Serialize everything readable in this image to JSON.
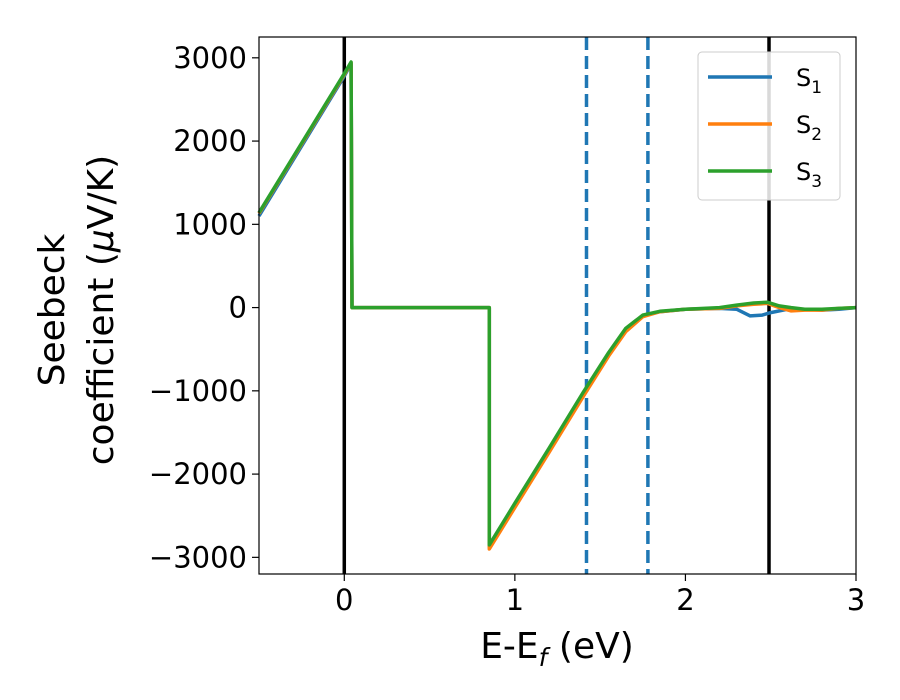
{
  "chart_data": {
    "type": "line",
    "xlabel": "E-E",
    "xlabel_sub": "f",
    "xlabel_unit": " (eV)",
    "ylabel_line1": "Seebeck",
    "ylabel_line2": "coefficient  (",
    "ylabel_mu": "μ",
    "ylabel_line2_end": "V/K)",
    "xlim": [
      -0.5,
      3
    ],
    "ylim": [
      -3200,
      3250
    ],
    "x_ticks": [
      0,
      1,
      2,
      3
    ],
    "x_tick_labels": [
      "0",
      "1",
      "2",
      "3"
    ],
    "y_ticks": [
      -3000,
      -2000,
      -1000,
      0,
      1000,
      2000,
      3000
    ],
    "y_tick_labels": [
      "−3000",
      "−2000",
      "−1000",
      "0",
      "1000",
      "2000",
      "3000"
    ],
    "grid": false,
    "legend_position": "top-right",
    "vertical_lines": [
      {
        "x": 0.0,
        "style": "solid",
        "color": "#000000"
      },
      {
        "x": 2.49,
        "style": "solid",
        "color": "#000000"
      },
      {
        "x": 1.42,
        "style": "dashed",
        "color": "#1f77b4"
      },
      {
        "x": 1.78,
        "style": "dashed",
        "color": "#1f77b4"
      }
    ],
    "series": [
      {
        "name": "S",
        "sub": "1",
        "color": "#1f77b4",
        "points": [
          [
            -0.5,
            1100
          ],
          [
            0.0,
            2780
          ],
          [
            0.04,
            2930
          ],
          [
            0.045,
            0
          ],
          [
            0.85,
            0
          ],
          [
            0.85,
            -2870
          ],
          [
            1.0,
            -2380
          ],
          [
            1.2,
            -1720
          ],
          [
            1.4,
            -1050
          ],
          [
            1.55,
            -560
          ],
          [
            1.65,
            -270
          ],
          [
            1.75,
            -100
          ],
          [
            1.85,
            -50
          ],
          [
            2.0,
            -20
          ],
          [
            2.2,
            -10
          ],
          [
            2.3,
            -20
          ],
          [
            2.38,
            -100
          ],
          [
            2.45,
            -90
          ],
          [
            2.5,
            -60
          ],
          [
            2.6,
            -20
          ],
          [
            2.7,
            -20
          ],
          [
            2.8,
            -30
          ],
          [
            2.9,
            -20
          ],
          [
            3.0,
            0
          ]
        ]
      },
      {
        "name": "S",
        "sub": "2",
        "color": "#ff7f0e",
        "points": [
          [
            -0.5,
            1130
          ],
          [
            0.0,
            2800
          ],
          [
            0.04,
            2940
          ],
          [
            0.045,
            0
          ],
          [
            0.85,
            0
          ],
          [
            0.85,
            -2900
          ],
          [
            1.0,
            -2400
          ],
          [
            1.2,
            -1740
          ],
          [
            1.4,
            -1070
          ],
          [
            1.55,
            -580
          ],
          [
            1.65,
            -290
          ],
          [
            1.75,
            -110
          ],
          [
            1.85,
            -50
          ],
          [
            2.0,
            -20
          ],
          [
            2.2,
            -10
          ],
          [
            2.3,
            20
          ],
          [
            2.4,
            40
          ],
          [
            2.48,
            50
          ],
          [
            2.55,
            0
          ],
          [
            2.62,
            -40
          ],
          [
            2.7,
            -30
          ],
          [
            2.8,
            -30
          ],
          [
            2.9,
            -10
          ],
          [
            3.0,
            0
          ]
        ]
      },
      {
        "name": "S",
        "sub": "3",
        "color": "#2ca02c",
        "points": [
          [
            -0.5,
            1140
          ],
          [
            0.0,
            2810
          ],
          [
            0.04,
            2950
          ],
          [
            0.045,
            0
          ],
          [
            0.85,
            0
          ],
          [
            0.85,
            -2850
          ],
          [
            1.0,
            -2350
          ],
          [
            1.2,
            -1690
          ],
          [
            1.4,
            -1020
          ],
          [
            1.55,
            -540
          ],
          [
            1.65,
            -250
          ],
          [
            1.75,
            -90
          ],
          [
            1.85,
            -45
          ],
          [
            2.0,
            -20
          ],
          [
            2.2,
            0
          ],
          [
            2.3,
            30
          ],
          [
            2.4,
            55
          ],
          [
            2.48,
            65
          ],
          [
            2.55,
            20
          ],
          [
            2.62,
            0
          ],
          [
            2.7,
            -20
          ],
          [
            2.8,
            -20
          ],
          [
            2.9,
            -10
          ],
          [
            3.0,
            0
          ]
        ]
      }
    ]
  }
}
